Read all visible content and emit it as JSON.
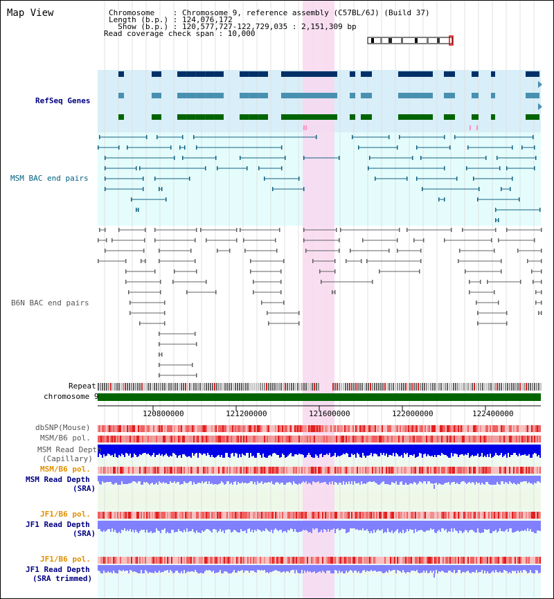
{
  "view": {
    "title": "Map View",
    "chromosome_line": "Chromosome    : Chromosome 9, reference assembly (C57BL/6J) (Build 37)",
    "length_line": "Length (b.p.) : 124,076,172",
    "show_line": "  Show (b.p.) : 120,577,727-122,729,035 : 2,151,309 bp",
    "coverage_line": "Read coverage check span : 10,000"
  },
  "tracks": {
    "refseq": "RefSeq Genes",
    "msm_bac": "MSM BAC end pairs",
    "b6n_bac": "B6N BAC end pairs",
    "repeat": "Repeat",
    "chromosome": "chromosome 9",
    "dbsnp": "dbSNP(Mouse)",
    "msm_pol": "MSM/B6 pol.",
    "msm_depth_cap_1": "MSM Read Depth",
    "msm_depth_cap_2": "(Capillary)",
    "msm_pol2": "MSM/B6 pol.",
    "msm_depth_sra_1": "MSM Read Depth",
    "msm_depth_sra_2": "(SRA)",
    "jf1_pol": "JF1/B6 pol.",
    "jf1_depth_1": "JF1 Read Depth",
    "jf1_depth_2": "(SRA)",
    "jf1_pol2": "JF1/B6 pol.",
    "jf1_trim_1": "JF1 Read Depth",
    "jf1_trim_2": "(SRA trimmed)"
  },
  "axis": {
    "ticks": [
      "120800000",
      "121200000",
      "121600000",
      "122000000",
      "122400000"
    ]
  },
  "colors": {
    "refseq_bg": "#d8eef8",
    "bac_bg": "#e4fcfc",
    "highlight": "#f8d8f0",
    "gene_dark": "#003068",
    "gene_mid": "#4890b0",
    "gene_green": "#006400",
    "msm_pair": "#106080",
    "b6n_pair": "#606060",
    "chromosome_bar": "#006400",
    "depth_cap": "#0000e8",
    "depth_sra": "#8080ff",
    "pol_red": "#e83030"
  }
}
